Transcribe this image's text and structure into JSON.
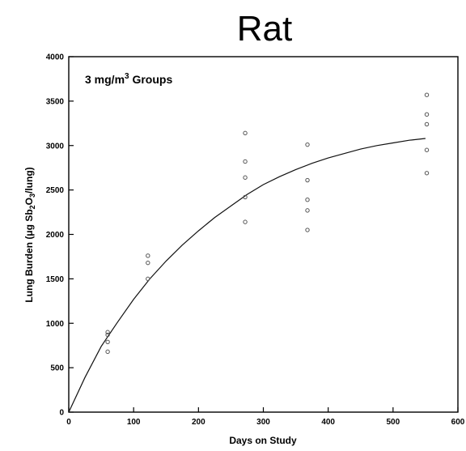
{
  "chart_data": {
    "type": "scatter",
    "title": "Rat",
    "annotation": {
      "prefix": "3 mg/m",
      "sup": "3",
      "suffix": " Groups"
    },
    "xlabel": "Days on Study",
    "ylabel": {
      "a": "Lung Burden (μg Sb",
      "sub1": "2",
      "b": "O",
      "sub2": "3",
      "c": "/lung)"
    },
    "xlim": [
      0,
      600
    ],
    "ylim": [
      0,
      4000
    ],
    "x_ticks": [
      "0",
      "100",
      "200",
      "300",
      "400",
      "500",
      "600"
    ],
    "y_ticks": [
      "0",
      "500",
      "1000",
      "1500",
      "2000",
      "2500",
      "3000",
      "3500",
      "4000"
    ],
    "grid": false,
    "series": [
      {
        "marker": "circle",
        "points": [
          [
            60,
            680
          ],
          [
            60,
            790
          ],
          [
            60,
            870
          ],
          [
            60,
            900
          ],
          [
            122,
            1500
          ],
          [
            122,
            1680
          ],
          [
            122,
            1760
          ],
          [
            272,
            2140
          ],
          [
            272,
            2420
          ],
          [
            272,
            2640
          ],
          [
            272,
            2820
          ],
          [
            272,
            3140
          ],
          [
            368,
            2050
          ],
          [
            368,
            2270
          ],
          [
            368,
            2390
          ],
          [
            368,
            2610
          ],
          [
            368,
            3010
          ],
          [
            552,
            2690
          ],
          [
            552,
            2950
          ],
          [
            552,
            3240
          ],
          [
            552,
            3350
          ],
          [
            552,
            3570
          ]
        ]
      },
      {
        "style": "fitted-curve",
        "points": [
          [
            0,
            0
          ],
          [
            25,
            390
          ],
          [
            50,
            740
          ],
          [
            75,
            1010
          ],
          [
            100,
            1270
          ],
          [
            125,
            1500
          ],
          [
            150,
            1700
          ],
          [
            175,
            1880
          ],
          [
            200,
            2040
          ],
          [
            225,
            2190
          ],
          [
            250,
            2320
          ],
          [
            275,
            2450
          ],
          [
            300,
            2560
          ],
          [
            325,
            2650
          ],
          [
            350,
            2730
          ],
          [
            375,
            2800
          ],
          [
            400,
            2860
          ],
          [
            425,
            2910
          ],
          [
            450,
            2960
          ],
          [
            475,
            3000
          ],
          [
            500,
            3030
          ],
          [
            525,
            3060
          ],
          [
            550,
            3080
          ]
        ]
      }
    ]
  }
}
